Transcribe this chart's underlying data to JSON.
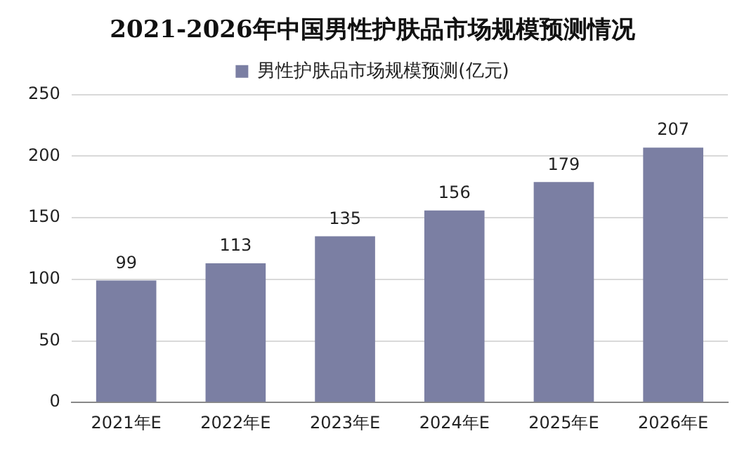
{
  "chart_data": {
    "type": "bar",
    "title": "2021-2026年中国男性护肤品市场规模预测情况",
    "categories": [
      "2021年E",
      "2022年E",
      "2023年E",
      "2024年E",
      "2025年E",
      "2026年E"
    ],
    "series": [
      {
        "name": "男性护肤品市场规模预测(亿元)",
        "color": "#7b7fa3",
        "values": [
          99,
          113,
          135,
          156,
          179,
          207
        ]
      }
    ],
    "ylim": [
      0,
      250
    ],
    "yticks": [
      0,
      50,
      100,
      150,
      200,
      250
    ],
    "grid": "y",
    "legend": "top",
    "data_labels": true
  }
}
